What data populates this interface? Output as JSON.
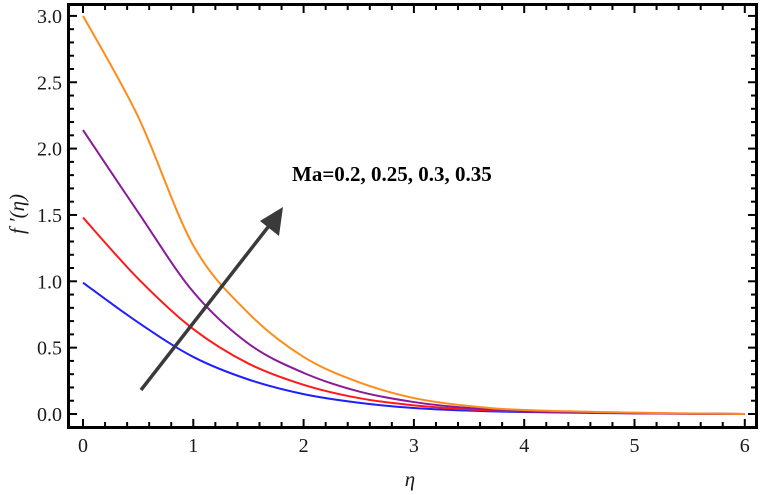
{
  "chart_data": {
    "type": "line",
    "title": "",
    "xlabel": "η",
    "ylabel": "f ′(η)",
    "xlim": [
      0,
      6
    ],
    "ylim": [
      0,
      3.0
    ],
    "x_ticks": [
      "0",
      "1",
      "2",
      "3",
      "4",
      "5",
      "6"
    ],
    "y_ticks": [
      "0.0",
      "0.5",
      "1.0",
      "1.5",
      "2.0",
      "2.5",
      "3.0"
    ],
    "grid": false,
    "legend": null,
    "x": [
      0,
      0.5,
      1,
      1.5,
      2,
      2.5,
      3,
      3.5,
      4,
      5,
      6
    ],
    "series": [
      {
        "name": "Ma=0.2",
        "color": "#1f1fff",
        "values": [
          0.99,
          0.69,
          0.43,
          0.26,
          0.15,
          0.085,
          0.045,
          0.025,
          0.015,
          0.005,
          0.0
        ]
      },
      {
        "name": "Ma=0.25",
        "color": "#ff1a1a",
        "values": [
          1.48,
          1.02,
          0.64,
          0.38,
          0.22,
          0.12,
          0.065,
          0.035,
          0.02,
          0.006,
          0.0
        ]
      },
      {
        "name": "Ma=0.3",
        "color": "#8a1a9a",
        "values": [
          2.14,
          1.52,
          0.92,
          0.53,
          0.31,
          0.17,
          0.09,
          0.045,
          0.022,
          0.007,
          0.0
        ]
      },
      {
        "name": "Ma=0.35",
        "color": "#ff8c1a",
        "values": [
          3.0,
          2.24,
          1.27,
          0.76,
          0.43,
          0.24,
          0.12,
          0.06,
          0.03,
          0.01,
          0.0
        ]
      }
    ],
    "annotations": [
      {
        "text": "Ma=0.2, 0.25, 0.3, 0.35",
        "type": "text"
      },
      {
        "type": "arrow",
        "from": [
          0.52,
          0.18
        ],
        "to": [
          1.81,
          1.55
        ],
        "color": "#3a3a3a",
        "meaning": "increasing Ma"
      }
    ]
  }
}
